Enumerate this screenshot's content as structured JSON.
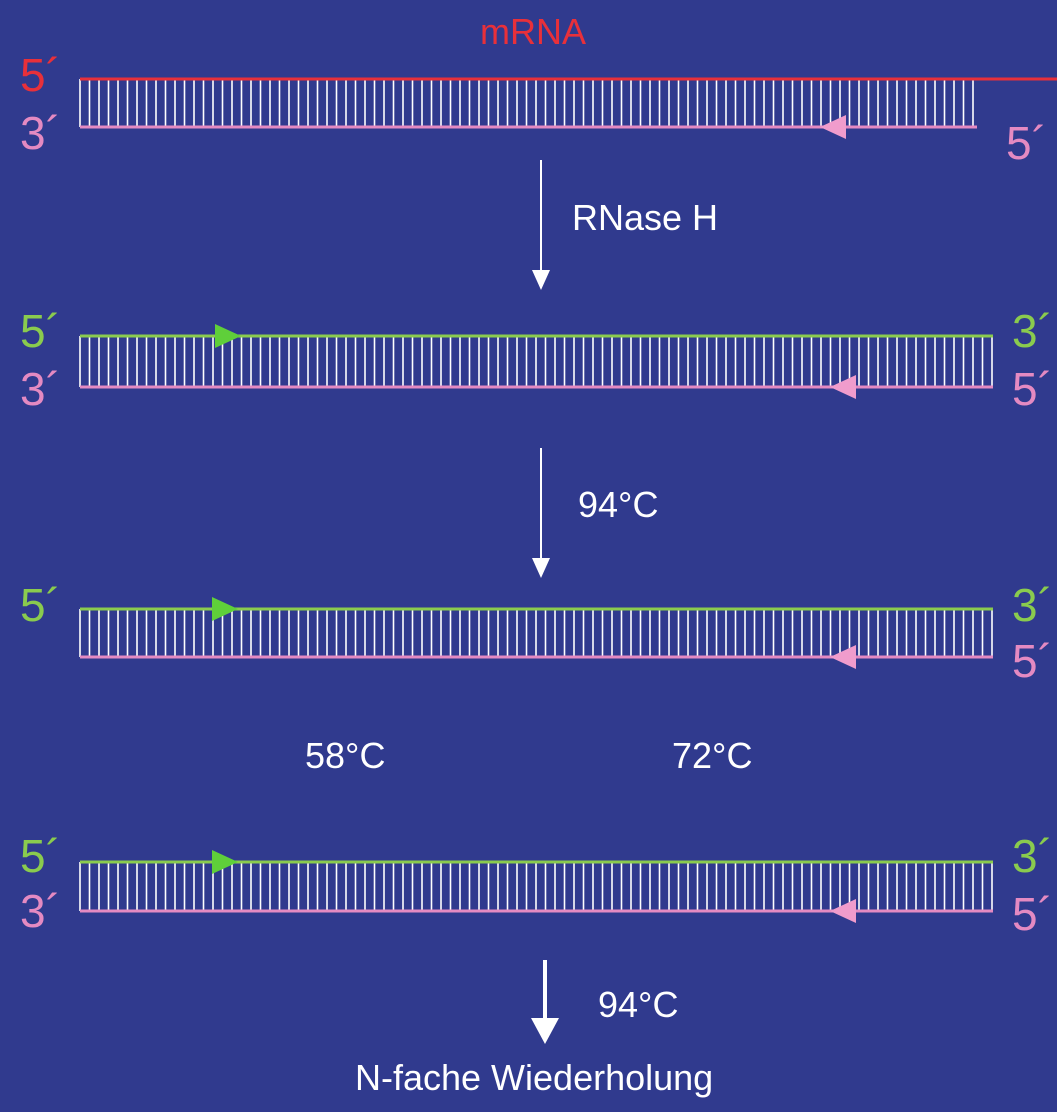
{
  "title": "mRNA",
  "rows": [
    {
      "left_top": "5´",
      "left_bottom": "3´",
      "right_top": "",
      "right_bottom": "5´"
    },
    {
      "left_top": "5´",
      "left_bottom": "3´",
      "right_top": "3´",
      "right_bottom": "5´"
    },
    {
      "left_top": "5´",
      "left_bottom": "",
      "right_top": "3´",
      "right_bottom": "5´"
    },
    {
      "left_top": "5´",
      "left_bottom": "3´",
      "right_top": "3´",
      "right_bottom": "5´"
    }
  ],
  "steps": {
    "rnase": "RNase H",
    "denature_1": "94°C",
    "anneal": "58°C",
    "extend": "72°C",
    "denature_2": "94°C"
  },
  "footer": "N-fache Wiederholung",
  "colors": {
    "background": "#303a8e",
    "mrna_strand": "#e8303a",
    "cdna_strand": "#e48ac2",
    "sense_strand": "#8acb4e",
    "arrow_green": "#5fcf3a",
    "arrow_pink": "#f09ccc",
    "text": "#ffffff"
  }
}
